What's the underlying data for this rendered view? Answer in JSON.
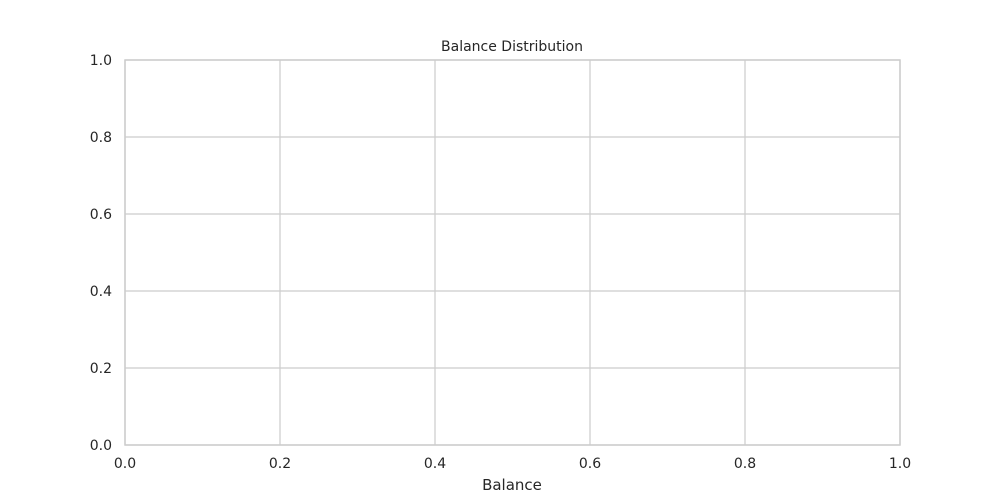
{
  "chart_data": {
    "type": "bar",
    "title": "Balance Distribution",
    "xlabel": "Balance",
    "ylabel": "",
    "xlim": [
      0,
      1
    ],
    "ylim": [
      0,
      1
    ],
    "x_ticks": [
      0.0,
      0.2,
      0.4,
      0.6,
      0.8,
      1.0
    ],
    "y_ticks": [
      0.0,
      0.2,
      0.4,
      0.6,
      0.8,
      1.0
    ],
    "x_tick_labels": [
      "0.0",
      "0.2",
      "0.4",
      "0.6",
      "0.8",
      "1.0"
    ],
    "y_tick_labels": [
      "0.0",
      "0.2",
      "0.4",
      "0.6",
      "0.8",
      "1.0"
    ],
    "grid": true,
    "series": [],
    "colors": {
      "grid": "#cccccc",
      "frame": "#cccccc",
      "text": "#262626",
      "background": "#ffffff"
    }
  }
}
